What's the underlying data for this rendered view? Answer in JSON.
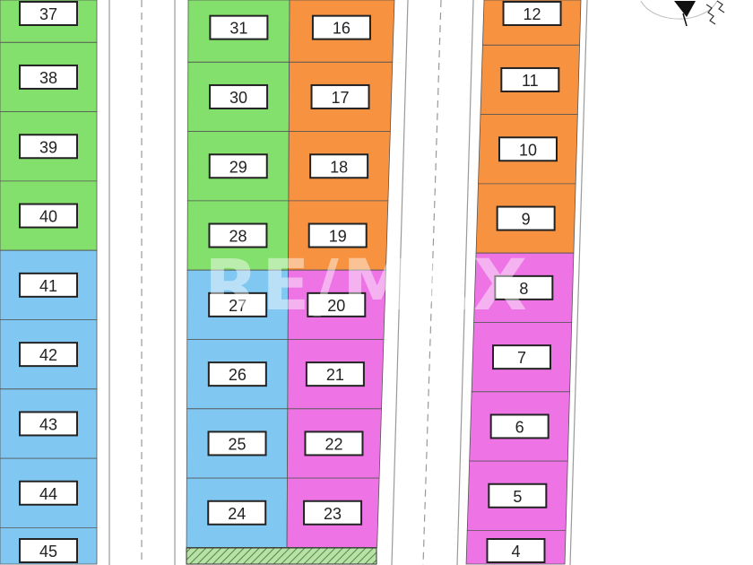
{
  "colors": {
    "green": "#84e06c",
    "orange": "#f79240",
    "blue": "#80c8f2",
    "pink": "#ee74e6",
    "hatch": "#9fd08a"
  },
  "watermark": "RE/MAX",
  "columns": [
    {
      "name": "west-block",
      "lots": [
        {
          "number": "37",
          "color": "green"
        },
        {
          "number": "38",
          "color": "green"
        },
        {
          "number": "39",
          "color": "green"
        },
        {
          "number": "40",
          "color": "green"
        },
        {
          "number": "41",
          "color": "blue"
        },
        {
          "number": "42",
          "color": "blue"
        },
        {
          "number": "43",
          "color": "blue"
        },
        {
          "number": "44",
          "color": "blue"
        },
        {
          "number": "45",
          "color": "blue"
        }
      ]
    },
    {
      "name": "center-west-block",
      "lots": [
        {
          "number": "31",
          "color": "green"
        },
        {
          "number": "30",
          "color": "green"
        },
        {
          "number": "29",
          "color": "green"
        },
        {
          "number": "28",
          "color": "green"
        },
        {
          "number": "27",
          "color": "blue"
        },
        {
          "number": "26",
          "color": "blue"
        },
        {
          "number": "25",
          "color": "blue"
        },
        {
          "number": "24",
          "color": "blue"
        }
      ]
    },
    {
      "name": "center-east-block",
      "lots": [
        {
          "number": "16",
          "color": "orange"
        },
        {
          "number": "17",
          "color": "orange"
        },
        {
          "number": "18",
          "color": "orange"
        },
        {
          "number": "19",
          "color": "orange"
        },
        {
          "number": "20",
          "color": "pink"
        },
        {
          "number": "21",
          "color": "pink"
        },
        {
          "number": "22",
          "color": "pink"
        },
        {
          "number": "23",
          "color": "pink"
        }
      ]
    },
    {
      "name": "east-block",
      "lots": [
        {
          "number": "12",
          "color": "orange"
        },
        {
          "number": "11",
          "color": "orange"
        },
        {
          "number": "10",
          "color": "orange"
        },
        {
          "number": "9",
          "color": "orange"
        },
        {
          "number": "8",
          "color": "pink"
        },
        {
          "number": "7",
          "color": "pink"
        },
        {
          "number": "6",
          "color": "pink"
        },
        {
          "number": "5",
          "color": "pink"
        },
        {
          "number": "4",
          "color": "pink"
        }
      ]
    }
  ],
  "compass": "north-arrow-icon"
}
